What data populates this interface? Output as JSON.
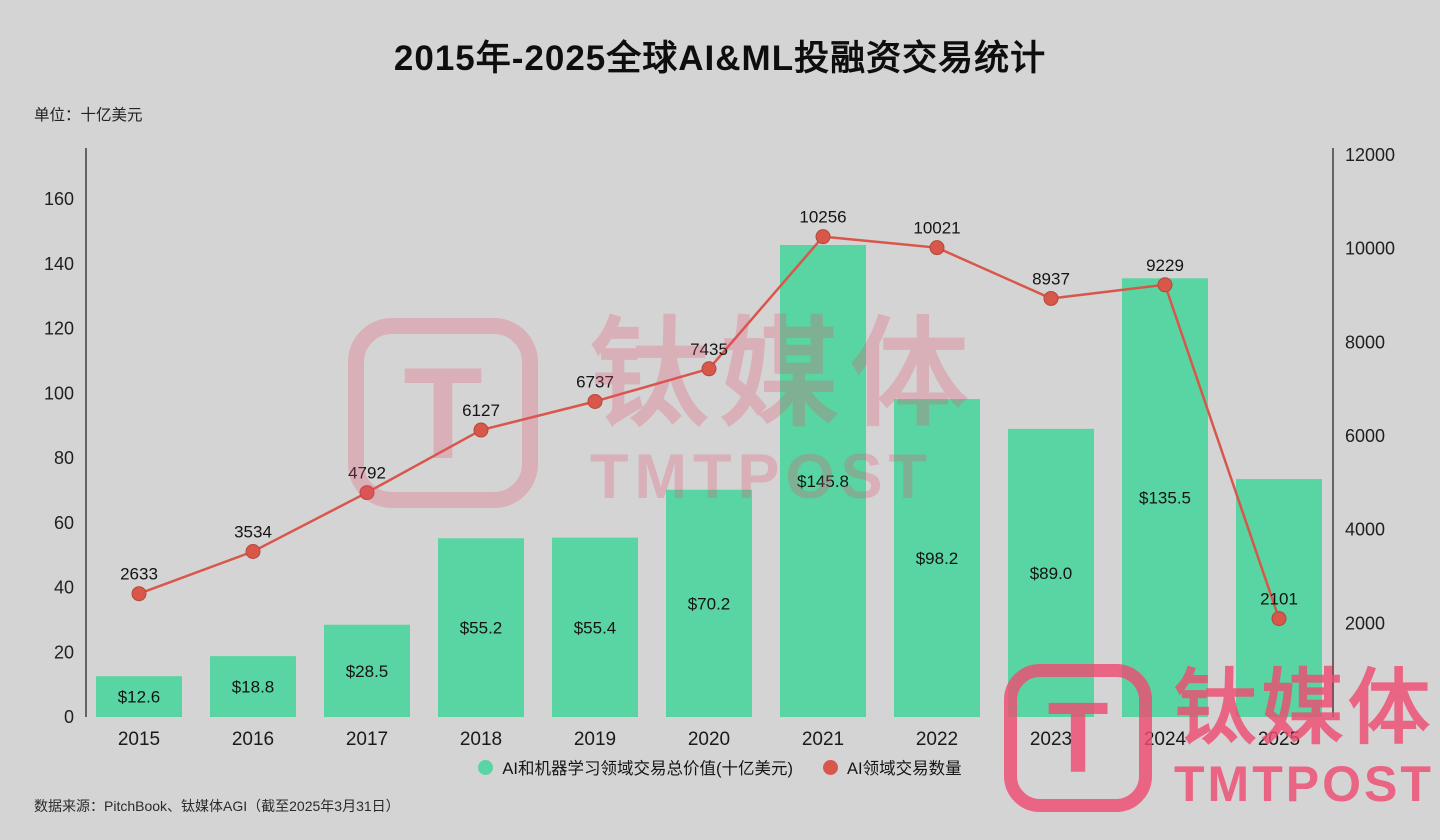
{
  "title": "2015年-2025全球AI&ML投融资交易统计",
  "unit_label": "单位：十亿美元",
  "source": "数据来源：PitchBook、钛媒体AGI（截至2025年3月31日）",
  "legend": [
    {
      "label": "AI和机器学习领域交易总价值(十亿美元)",
      "color": "#58d5a2"
    },
    {
      "label": "AI领域交易数量",
      "color": "#d8574a"
    }
  ],
  "watermark": {
    "logo_letter": "T",
    "brand_cn": "钛媒体",
    "brand_en": "TMTPOST",
    "color": "#ee4d72"
  },
  "chart_data": {
    "type": "bar+line",
    "title": "2015年-2025全球AI&ML投融资交易统计",
    "categories": [
      "2015",
      "2016",
      "2017",
      "2018",
      "2019",
      "2020",
      "2021",
      "2022",
      "2023",
      "2024",
      "2025"
    ],
    "series": [
      {
        "name": "AI和机器学习领域交易总价值(十亿美元)",
        "type": "bar",
        "axis": "left",
        "color": "#58d5a2",
        "values": [
          12.6,
          18.8,
          28.5,
          55.2,
          55.4,
          70.2,
          145.8,
          98.2,
          89.0,
          135.5,
          73.5
        ],
        "labels": [
          "$12.6",
          "$18.8",
          "$28.5",
          "$55.2",
          "$55.4",
          "$70.2",
          "$145.8",
          "$98.2",
          "$89.0",
          "$135.5",
          ""
        ]
      },
      {
        "name": "AI领域交易数量",
        "type": "line",
        "axis": "right",
        "color": "#d8574a",
        "values": [
          2633,
          3534,
          4792,
          6127,
          6737,
          7435,
          10256,
          10021,
          8937,
          9229,
          2101
        ],
        "labels": [
          "2633",
          "3534",
          "4792",
          "6127",
          "6737",
          "7435",
          "10256",
          "10021",
          "8937",
          "9229",
          "2101"
        ]
      }
    ],
    "left_axis": {
      "min": 0,
      "max": 160,
      "step": 20,
      "ticks": [
        0,
        20,
        40,
        60,
        80,
        100,
        120,
        140,
        160
      ]
    },
    "right_axis": {
      "min": 0,
      "max": 12000,
      "step": 2000,
      "ticks": [
        2000,
        4000,
        6000,
        8000,
        10000,
        12000
      ]
    },
    "grid": false,
    "legend_position": "bottom"
  }
}
